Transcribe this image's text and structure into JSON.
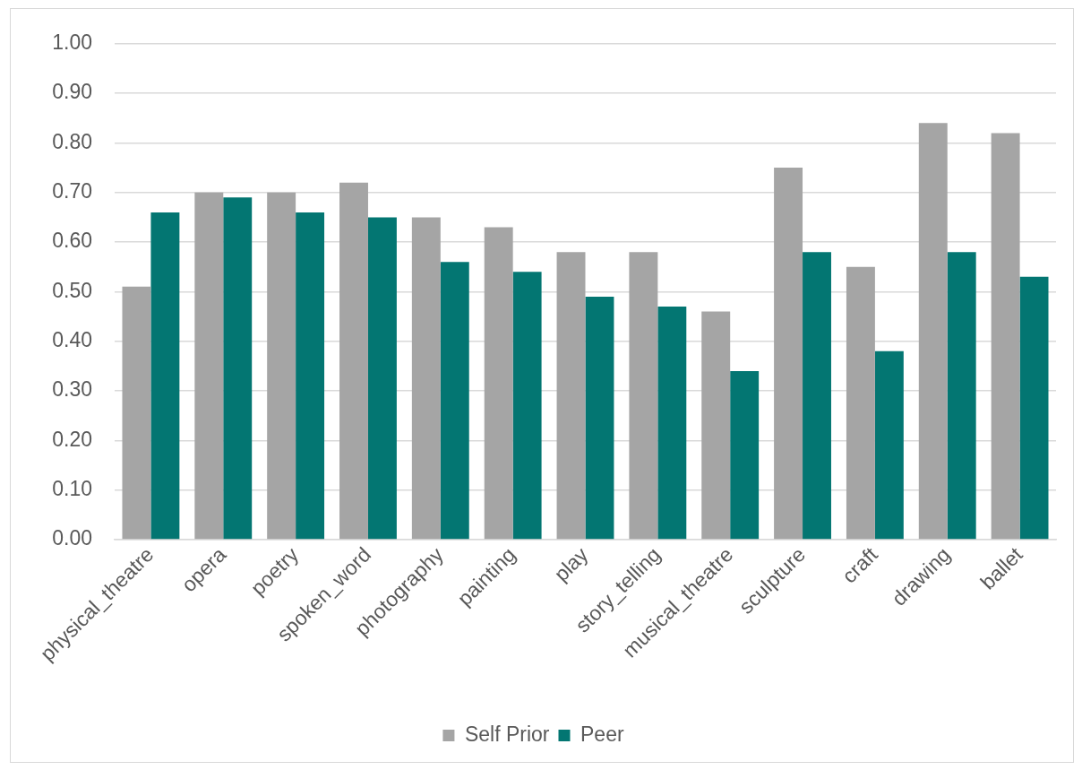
{
  "chart_data": {
    "type": "bar",
    "categories": [
      "physical_theatre",
      "opera",
      "poetry",
      "spoken_word",
      "photography",
      "painting",
      "play",
      "story_telling",
      "musical_theatre",
      "sculpture",
      "craft",
      "drawing",
      "ballet"
    ],
    "series": [
      {
        "name": "Self Prior",
        "color": "#a5a5a5",
        "values": [
          0.51,
          0.7,
          0.7,
          0.72,
          0.65,
          0.63,
          0.58,
          0.58,
          0.46,
          0.75,
          0.55,
          0.84,
          0.82
        ]
      },
      {
        "name": "Peer",
        "color": "#037672",
        "values": [
          0.66,
          0.69,
          0.66,
          0.65,
          0.56,
          0.54,
          0.49,
          0.47,
          0.34,
          0.58,
          0.38,
          0.58,
          0.53
        ]
      }
    ],
    "ylim": [
      0,
      1
    ],
    "yticks": [
      {
        "value": 0,
        "label": "0.00"
      },
      {
        "value": 0.1,
        "label": "0.10"
      },
      {
        "value": 0.2,
        "label": "0.20"
      },
      {
        "value": 0.3,
        "label": "0.30"
      },
      {
        "value": 0.4,
        "label": "0.40"
      },
      {
        "value": 0.5,
        "label": "0.50"
      },
      {
        "value": 0.6,
        "label": "0.60"
      },
      {
        "value": 0.7,
        "label": "0.70"
      },
      {
        "value": 0.8,
        "label": "0.80"
      },
      {
        "value": 0.9,
        "label": "0.90"
      },
      {
        "value": 1,
        "label": "1.00"
      }
    ],
    "grid": "y",
    "legend": "bottom"
  }
}
